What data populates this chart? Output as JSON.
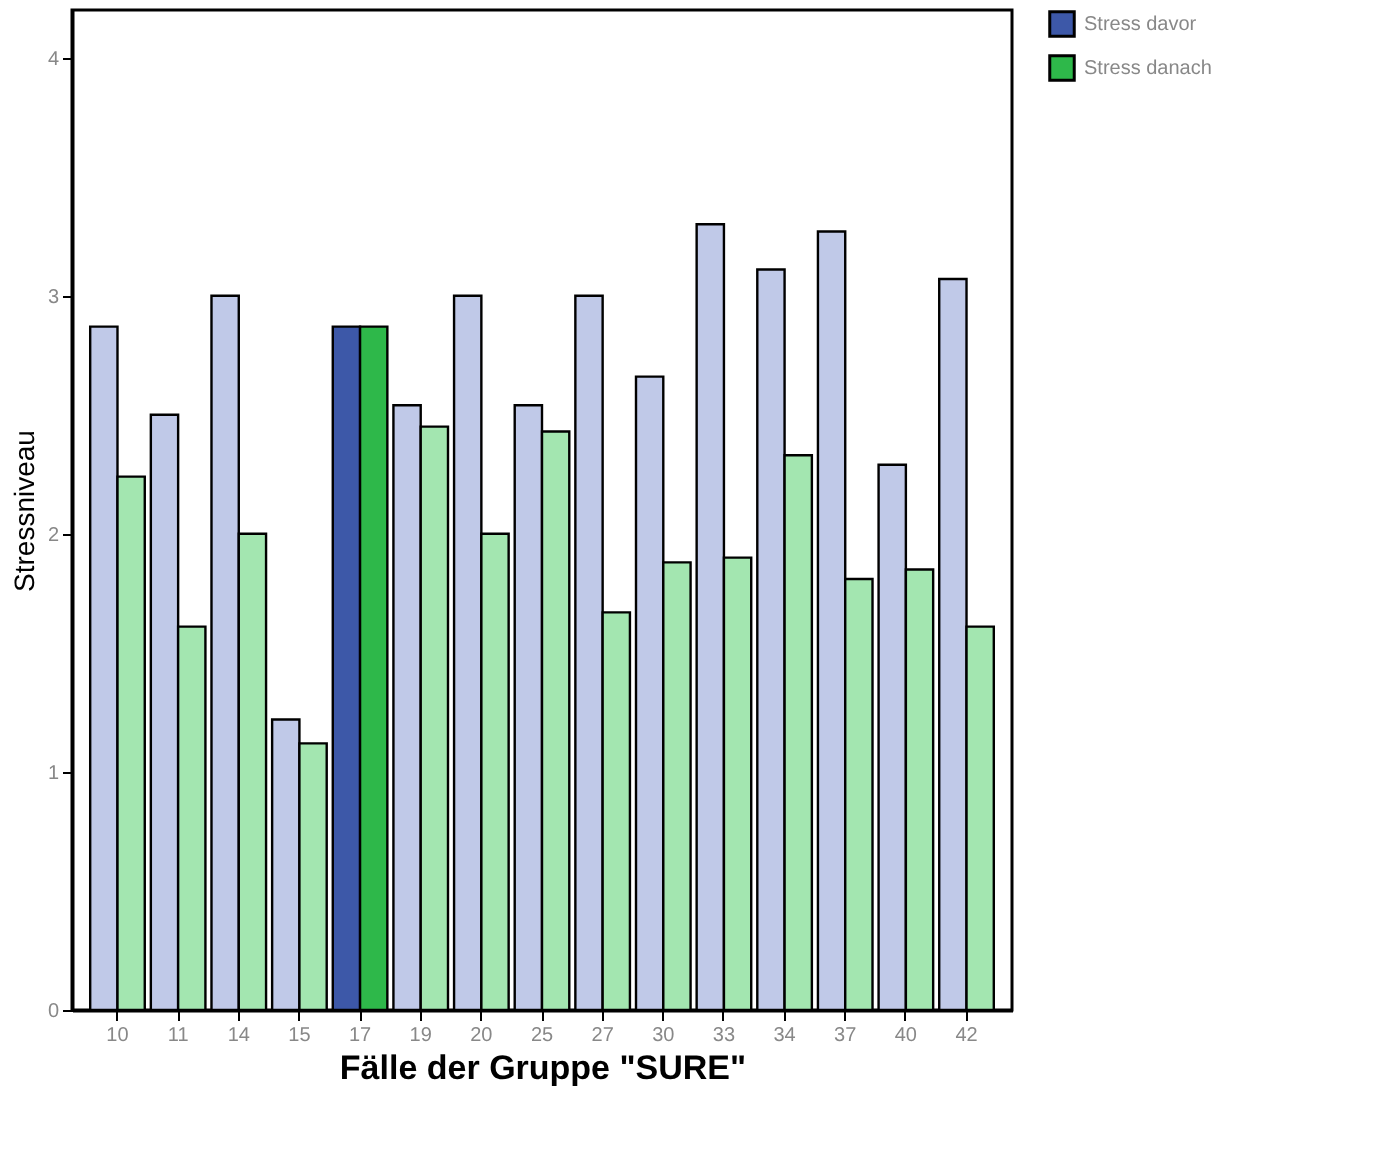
{
  "chart_data": {
    "type": "bar",
    "xlabel": "Fälle der Gruppe \"SURE\"",
    "ylabel": "Stressniveau",
    "categories": [
      "10",
      "11",
      "14",
      "15",
      "17",
      "19",
      "20",
      "25",
      "27",
      "30",
      "33",
      "34",
      "37",
      "40",
      "42"
    ],
    "series": [
      {
        "name": "Stress davor",
        "color": "#3d58a8",
        "values": [
          2.87,
          2.5,
          3.0,
          1.22,
          2.87,
          2.54,
          3.0,
          2.54,
          3.0,
          2.66,
          3.3,
          3.11,
          3.27,
          2.29,
          3.07
        ],
        "colors": [
          "#c0c9e8",
          "#c0c9e8",
          "#c0c9e8",
          "#c0c9e8",
          "#3d58a8",
          "#c0c9e8",
          "#c0c9e8",
          "#c0c9e8",
          "#c0c9e8",
          "#c0c9e8",
          "#c0c9e8",
          "#c0c9e8",
          "#c0c9e8",
          "#c0c9e8",
          "#c0c9e8"
        ]
      },
      {
        "name": "Stress danach",
        "color": "#2eb84a",
        "values": [
          2.24,
          1.61,
          2.0,
          1.12,
          2.87,
          2.45,
          2.0,
          2.43,
          1.67,
          1.88,
          1.9,
          2.33,
          1.81,
          1.85,
          1.61
        ],
        "colors": [
          "#a3e6b0",
          "#a3e6b0",
          "#a3e6b0",
          "#a3e6b0",
          "#2eb84a",
          "#a3e6b0",
          "#a3e6b0",
          "#a3e6b0",
          "#a3e6b0",
          "#a3e6b0",
          "#a3e6b0",
          "#a3e6b0",
          "#a3e6b0",
          "#a3e6b0",
          "#a3e6b0"
        ]
      }
    ],
    "ylim": [
      0,
      4.2
    ],
    "yticks": [
      0,
      1,
      2,
      3,
      4
    ],
    "grid": false,
    "legend": "top right"
  }
}
